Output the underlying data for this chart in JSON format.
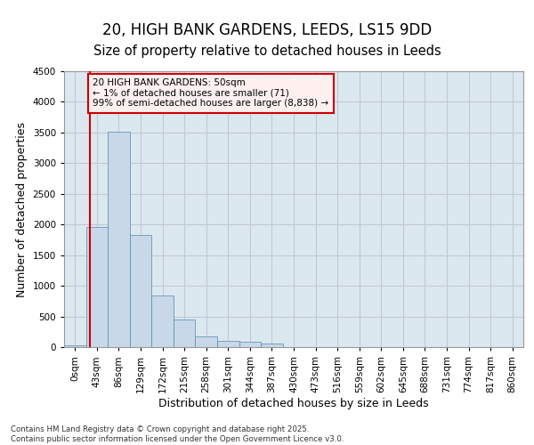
{
  "title_line1": "20, HIGH BANK GARDENS, LEEDS, LS15 9DD",
  "title_line2": "Size of property relative to detached houses in Leeds",
  "xlabel": "Distribution of detached houses by size in Leeds",
  "ylabel": "Number of detached properties",
  "bin_labels": [
    "0sqm",
    "43sqm",
    "86sqm",
    "129sqm",
    "172sqm",
    "215sqm",
    "258sqm",
    "301sqm",
    "344sqm",
    "387sqm",
    "430sqm",
    "473sqm",
    "516sqm",
    "559sqm",
    "602sqm",
    "645sqm",
    "688sqm",
    "731sqm",
    "774sqm",
    "817sqm",
    "860sqm"
  ],
  "bar_values": [
    30,
    1960,
    3520,
    1830,
    840,
    450,
    170,
    100,
    80,
    65,
    0,
    0,
    0,
    0,
    0,
    0,
    0,
    0,
    0,
    0,
    0
  ],
  "bar_color": "#c8d8e8",
  "bar_edge_color": "#5588aa",
  "vline_color": "#cc0000",
  "annotation_text": "20 HIGH BANK GARDENS: 50sqm\n← 1% of detached houses are smaller (71)\n99% of semi-detached houses are larger (8,838) →",
  "annotation_box_facecolor": "#fff0f0",
  "annotation_edge_color": "#cc0000",
  "ylim": [
    0,
    4500
  ],
  "yticks": [
    0,
    500,
    1000,
    1500,
    2000,
    2500,
    3000,
    3500,
    4000,
    4500
  ],
  "grid_color": "#c0c8d8",
  "bg_color": "#dce8f0",
  "footer_text": "Contains HM Land Registry data © Crown copyright and database right 2025.\nContains public sector information licensed under the Open Government Licence v3.0.",
  "title_fontsize": 12,
  "subtitle_fontsize": 10.5,
  "tick_fontsize": 7.5,
  "label_fontsize": 9,
  "annotation_fontsize": 7.5
}
